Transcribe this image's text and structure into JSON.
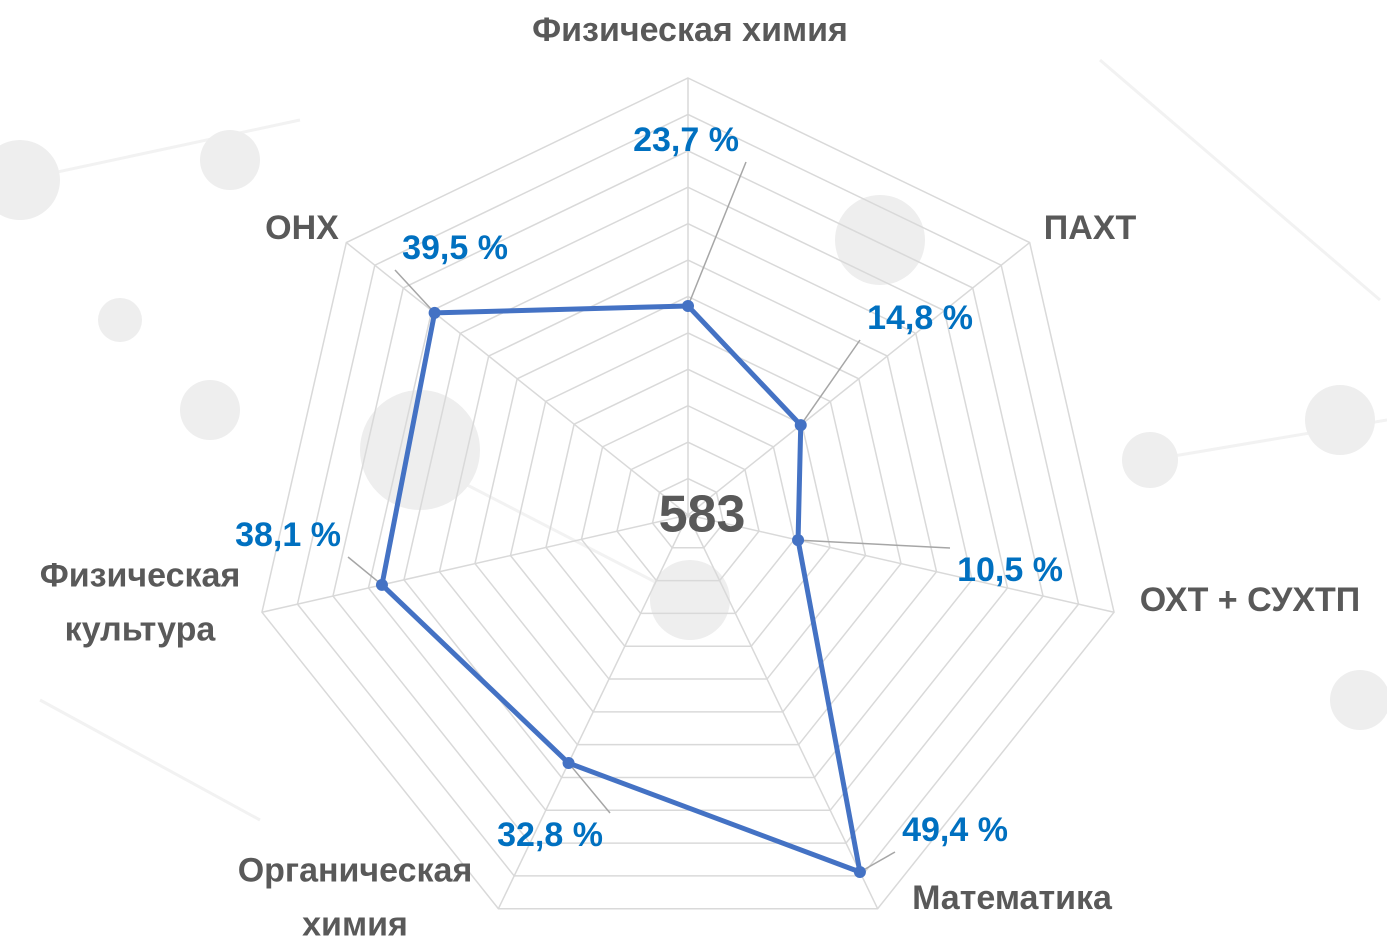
{
  "chart_data": {
    "type": "radar",
    "categories": [
      "Физическая химия",
      "ПАХТ",
      "ОХТ + СУХТП",
      "Математика",
      "Органическая химия",
      "Физическая культура",
      "ОНХ"
    ],
    "values": [
      23.7,
      14.8,
      10.5,
      49.4,
      32.8,
      38.1,
      39.5
    ],
    "value_labels": [
      "23,7 %",
      "14,8 %",
      "10,5 %",
      "49,4 %",
      "32,8 %",
      "38,1 %",
      "39,5 %"
    ],
    "color": "#4472c4",
    "center_label": "583",
    "ylim": [
      -5,
      55
    ],
    "yticks": [
      0,
      5,
      10,
      15,
      20,
      25,
      30,
      35,
      40,
      45,
      50,
      55
    ],
    "grid": true
  }
}
